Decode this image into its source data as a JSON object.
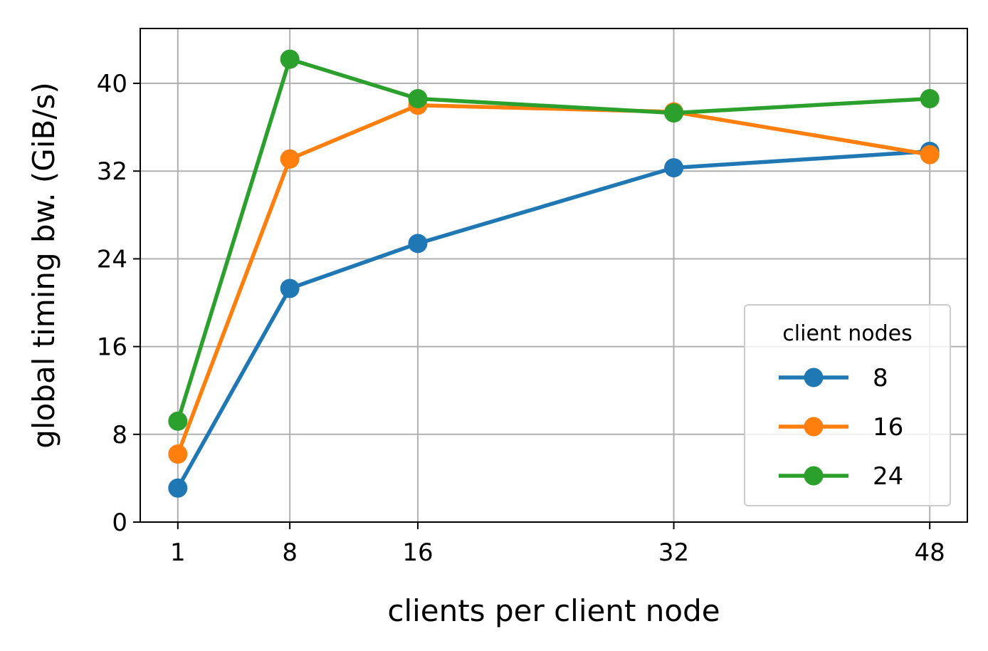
{
  "chart_data": {
    "type": "line",
    "xlabel": "clients per client node",
    "ylabel": "global timing bw. (GiB/s)",
    "x": [
      1,
      8,
      16,
      32,
      48
    ],
    "xticks": [
      1,
      8,
      16,
      32,
      48
    ],
    "yticks": [
      0,
      8,
      16,
      24,
      32,
      40
    ],
    "xlim": [
      -1.35,
      50.35
    ],
    "ylim": [
      0,
      45
    ],
    "grid": true,
    "legend": {
      "title": "client nodes",
      "placement": "lower-right"
    },
    "series": [
      {
        "name": "8",
        "color": "#1f77b4",
        "values": [
          3.1,
          21.3,
          25.4,
          32.3,
          33.8
        ]
      },
      {
        "name": "16",
        "color": "#ff7f0e",
        "values": [
          6.2,
          33.1,
          38.0,
          37.4,
          33.5
        ]
      },
      {
        "name": "24",
        "color": "#2ca02c",
        "values": [
          9.2,
          42.2,
          38.6,
          37.3,
          38.6
        ]
      }
    ]
  }
}
